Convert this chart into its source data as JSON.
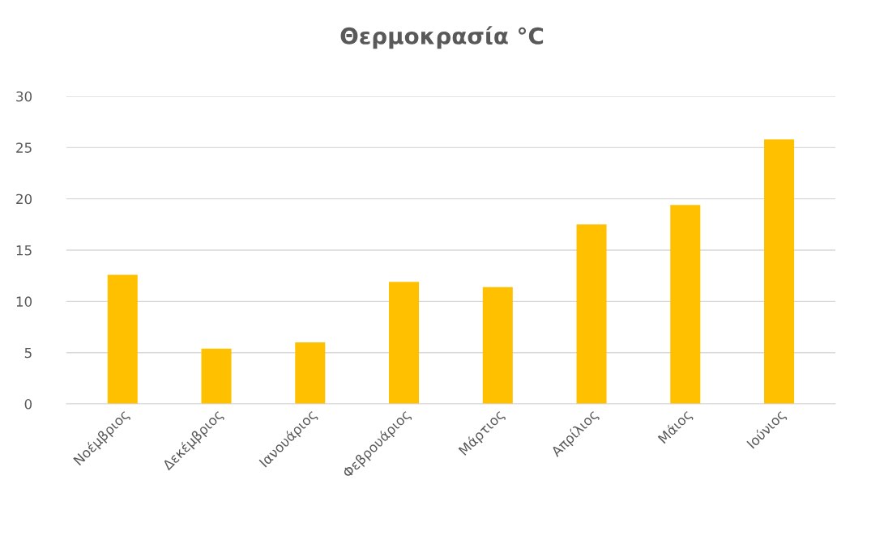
{
  "chart_data": {
    "type": "bar",
    "title": "Θερμοκρασία °C",
    "categories": [
      "Νοέμβριος",
      "Δεκέμβριος",
      "Ιανουάριος",
      "Φεβρουάριος",
      "Μάρτιος",
      "Απρίλιος",
      "Μάιος",
      "Ιούνιος"
    ],
    "values": [
      12.6,
      5.4,
      6.0,
      11.9,
      11.4,
      17.5,
      19.4,
      25.8
    ],
    "color": "#ffc000",
    "ylim": [
      0,
      30
    ],
    "yticks": [
      0,
      5,
      10,
      15,
      20,
      25,
      30
    ],
    "grid": "y",
    "legend": false
  }
}
